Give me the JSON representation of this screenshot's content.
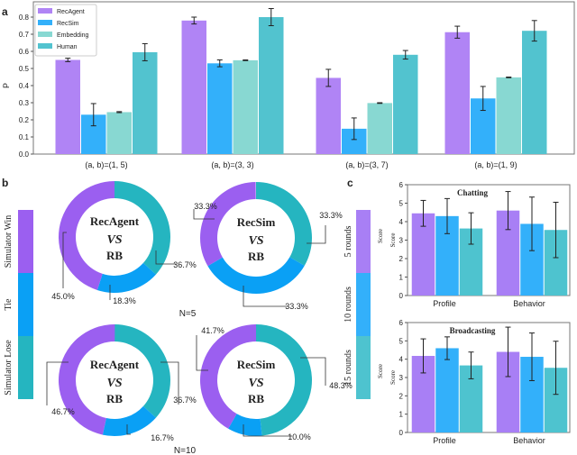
{
  "panel_labels": {
    "a": "a",
    "b": "b",
    "c": "c"
  },
  "chart_data": [
    {
      "type": "bar",
      "panel": "a",
      "ylabel": "P",
      "ylim": [
        0,
        0.88
      ],
      "yticks": [
        0.0,
        0.1,
        0.2,
        0.3,
        0.4,
        0.5,
        0.6,
        0.7,
        0.8
      ],
      "categories": [
        "(a, b)=(1, 5)",
        "(a, b)=(3, 3)",
        "(a, b)=(3, 7)",
        "(a, b)=(1, 9)"
      ],
      "legend_position": "top-left",
      "series": [
        {
          "name": "RecAgent",
          "color": "#b084f5",
          "values": [
            0.55,
            0.78,
            0.445,
            0.712
          ],
          "errors": [
            0.01,
            0.02,
            0.05,
            0.035
          ]
        },
        {
          "name": "RecSim",
          "color": "#33b0fa",
          "values": [
            0.23,
            0.53,
            0.148,
            0.325
          ],
          "errors": [
            0.065,
            0.02,
            0.063,
            0.07
          ]
        },
        {
          "name": "Embedding",
          "color": "#88d8d2",
          "values": [
            0.245,
            0.548,
            0.298,
            0.448
          ],
          "errors": [
            0.003,
            0.002,
            0.002,
            0.002
          ]
        },
        {
          "name": "Human",
          "color": "#52c3cf",
          "values": [
            0.595,
            0.8,
            0.58,
            0.72
          ],
          "errors": [
            0.05,
            0.05,
            0.025,
            0.06
          ]
        }
      ]
    },
    {
      "type": "pie",
      "panel": "b",
      "legend": [
        "Simulator Win",
        "Tie",
        "Simulator Lose"
      ],
      "colors": [
        "#9b5ff0",
        "#0aa0f5",
        "#25b5c0"
      ],
      "groups": [
        {
          "label": "N=5"
        },
        {
          "label": "N=10"
        }
      ],
      "donuts": [
        {
          "top": "RecAgent",
          "vs": "VS",
          "bottom": "RB",
          "n": "N=5",
          "win": 45.0,
          "tie": 18.3,
          "lose": 36.7,
          "labels": [
            "45.0%",
            "18.3%",
            "36.7%"
          ]
        },
        {
          "top": "RecSim",
          "vs": "VS",
          "bottom": "RB",
          "n": "N=5",
          "win": 33.3,
          "tie": 33.3,
          "lose": 33.3,
          "labels": [
            "33.3%",
            "33.3%",
            "33.3%"
          ]
        },
        {
          "top": "RecAgent",
          "vs": "VS",
          "bottom": "RB",
          "n": "N=10",
          "win": 46.7,
          "tie": 16.7,
          "lose": 36.7,
          "labels": [
            "46.7%",
            "16.7%",
            "36.7%"
          ]
        },
        {
          "top": "RecSim",
          "vs": "VS",
          "bottom": "RB",
          "n": "N=10",
          "win": 41.7,
          "tie": 10.0,
          "lose": 48.3,
          "labels": [
            "41.7%",
            "10.0%",
            "48.3%"
          ]
        }
      ]
    },
    {
      "type": "bar",
      "panel": "c",
      "legend": [
        "5 rounds",
        "10 rounds",
        "15 rounds"
      ],
      "colors": [
        "#a87ff5",
        "#33b0fa",
        "#4ec3cf"
      ],
      "legend_axis_label": "Score",
      "subplots": [
        {
          "title": "Chatting",
          "ylabel": "Score",
          "ylim": [
            0,
            6
          ],
          "yticks": [
            0,
            1,
            2,
            3,
            4,
            5,
            6
          ],
          "categories": [
            "Profile",
            "Behavior"
          ],
          "values": [
            [
              4.45,
              4.3,
              3.63
            ],
            [
              4.6,
              3.88,
              3.55
            ]
          ],
          "errors": [
            [
              0.7,
              0.95,
              0.85
            ],
            [
              1.03,
              1.45,
              1.5
            ]
          ]
        },
        {
          "title": "Broadcasting",
          "ylabel": "Score",
          "ylim": [
            0,
            6
          ],
          "yticks": [
            0,
            1,
            2,
            3,
            4,
            5,
            6
          ],
          "categories": [
            "Profile",
            "Behavior"
          ],
          "values": [
            [
              4.18,
              4.6,
              3.66
            ],
            [
              4.4,
              4.13,
              3.53
            ]
          ],
          "errors": [
            [
              0.93,
              0.62,
              0.73
            ],
            [
              1.35,
              1.3,
              1.45
            ]
          ]
        }
      ]
    }
  ]
}
